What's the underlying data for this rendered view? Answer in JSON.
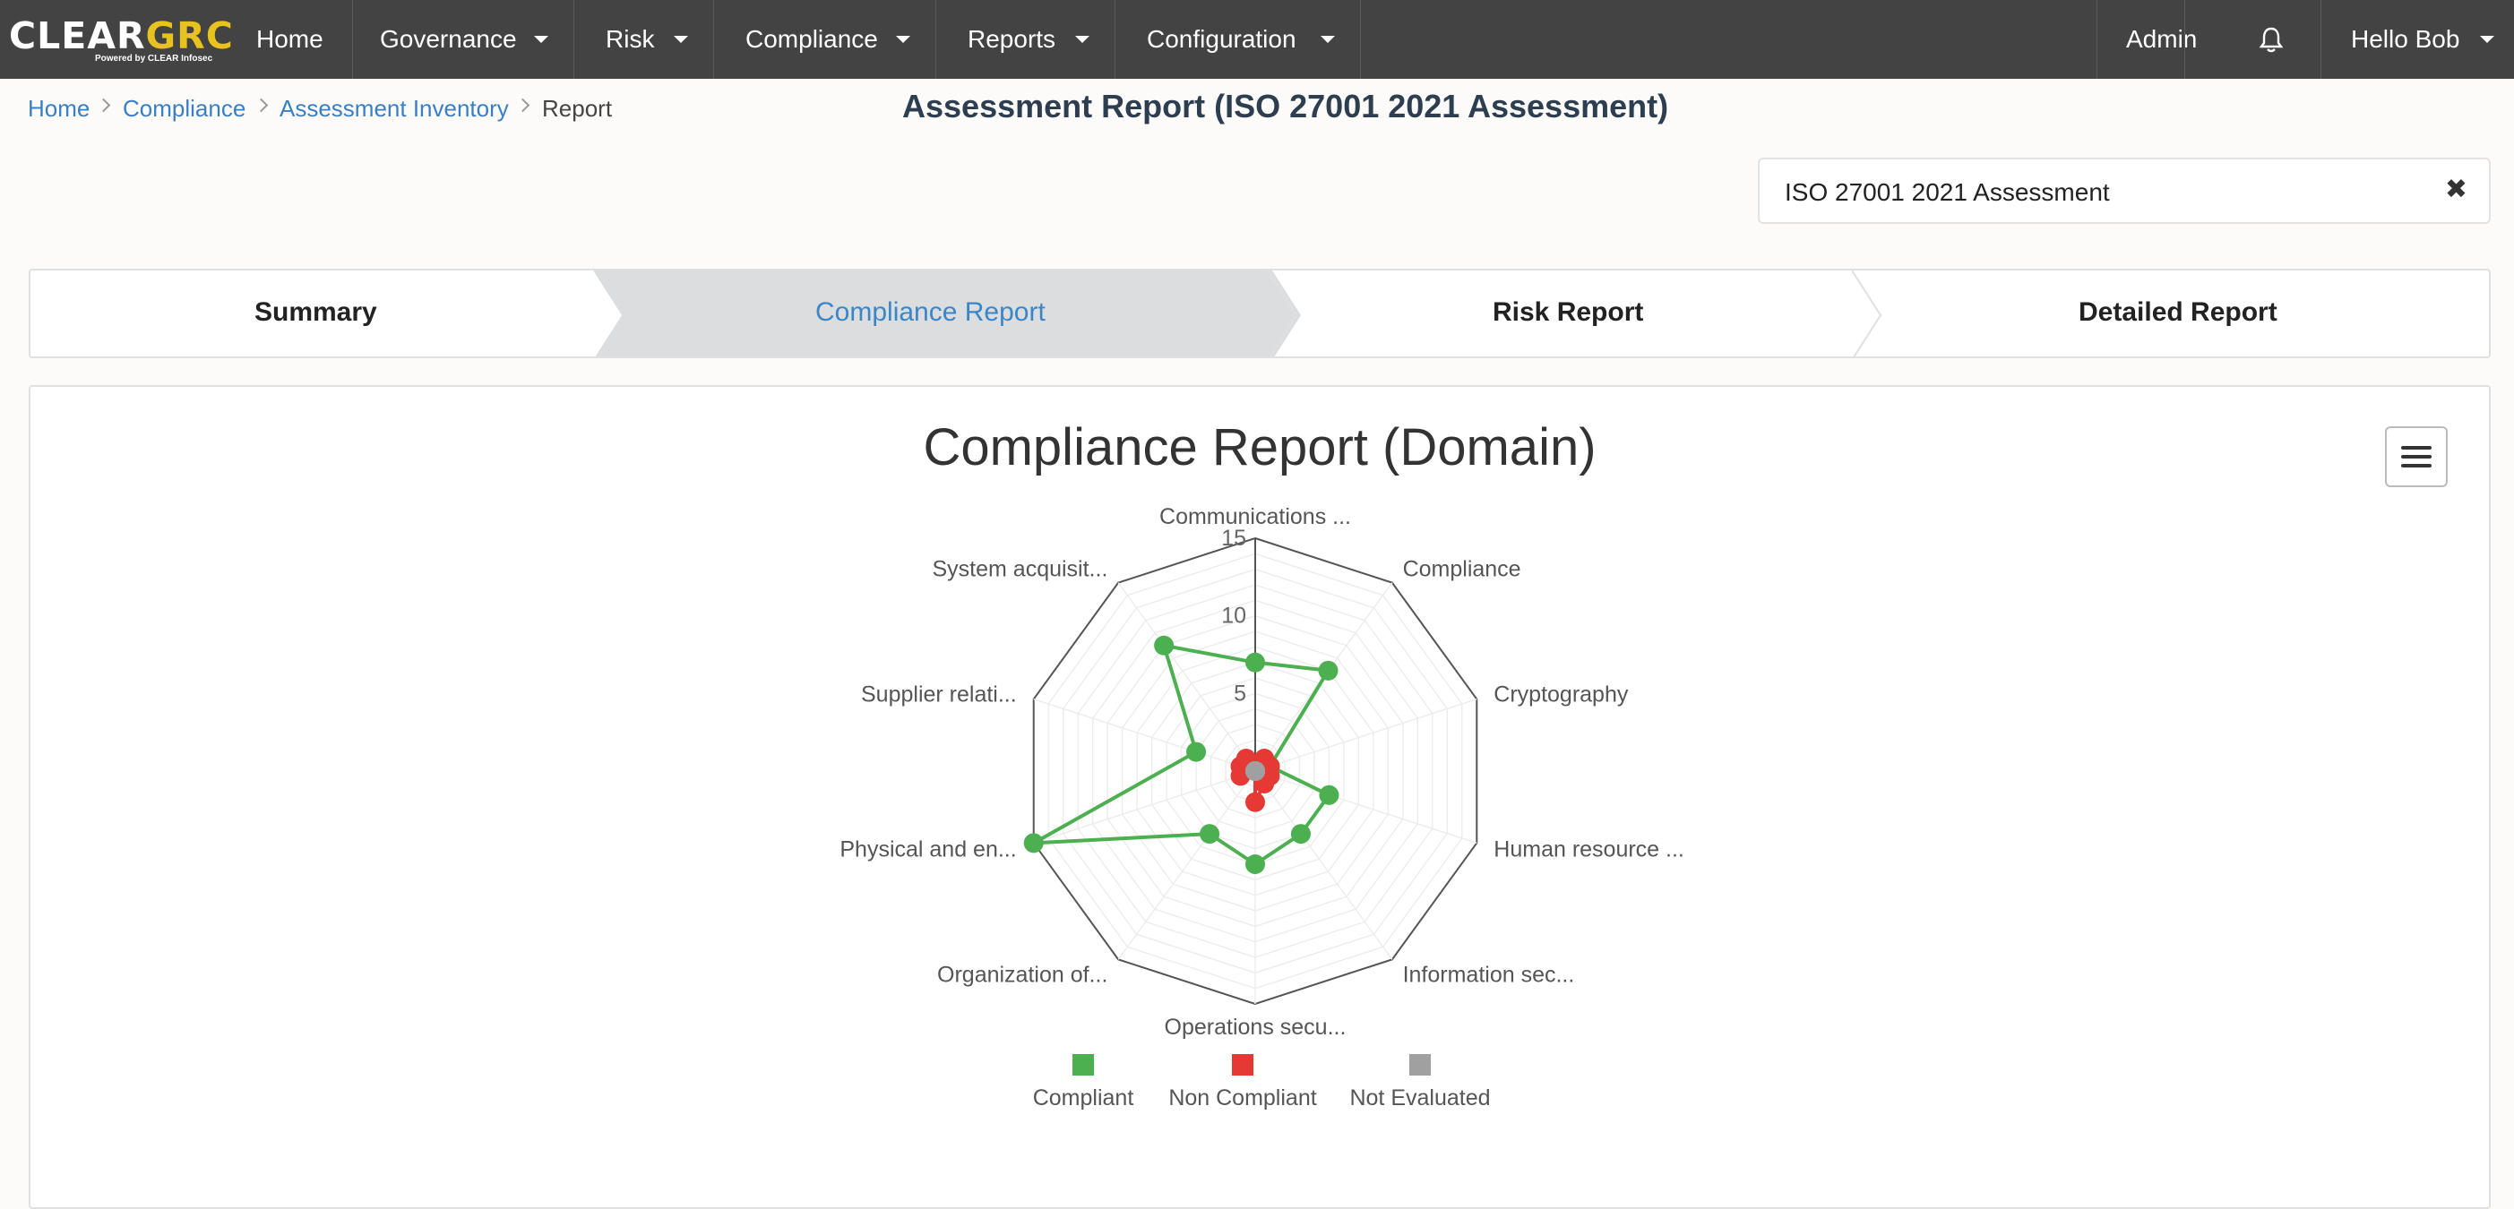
{
  "nav": {
    "logo_clear": "CLEAR",
    "logo_grc": "GRC",
    "logo_powered": "Powered by CLEAR Infosec",
    "items": [
      "Home",
      "Governance",
      "Risk",
      "Compliance",
      "Reports",
      "Configuration"
    ],
    "admin": "Admin",
    "user": "Hello Bob"
  },
  "breadcrumb": [
    "Home",
    "Compliance",
    "Assessment Inventory",
    "Report"
  ],
  "page_title": "Assessment Report (ISO 27001 2021 Assessment)",
  "filter": {
    "value": "ISO 27001 2021 Assessment"
  },
  "tabs": [
    "Summary",
    "Compliance Report",
    "Risk Report",
    "Detailed Report"
  ],
  "active_tab": "Compliance Report",
  "colors": {
    "compliant": "#4caf50",
    "non_compliant": "#e53935",
    "not_evaluated": "#a0a0a0",
    "nav_bg": "#434343",
    "link": "#3a7fc4"
  },
  "chart_data": {
    "type": "radar",
    "title": "Compliance Report (Domain)",
    "categories": [
      "Communications ...",
      "Compliance",
      "Cryptography",
      "Human resource ...",
      "Information sec...",
      "Operations secu...",
      "Organization of...",
      "Physical and en...",
      "Supplier relati...",
      "System acquisit..."
    ],
    "radial_ticks": [
      "5",
      "10",
      "15"
    ],
    "rmax": 15,
    "series": [
      {
        "name": "Compliant",
        "values": [
          7,
          8,
          1,
          5,
          5,
          6,
          5,
          15,
          4,
          10
        ]
      },
      {
        "name": "Non Compliant",
        "values": [
          0,
          1,
          1,
          1,
          1,
          2,
          0,
          1,
          1,
          1
        ]
      },
      {
        "name": "Not Evaluated",
        "values": [
          0,
          0,
          0,
          0,
          0,
          0,
          0,
          0,
          0,
          0
        ]
      }
    ],
    "legend_position": "bottom"
  }
}
